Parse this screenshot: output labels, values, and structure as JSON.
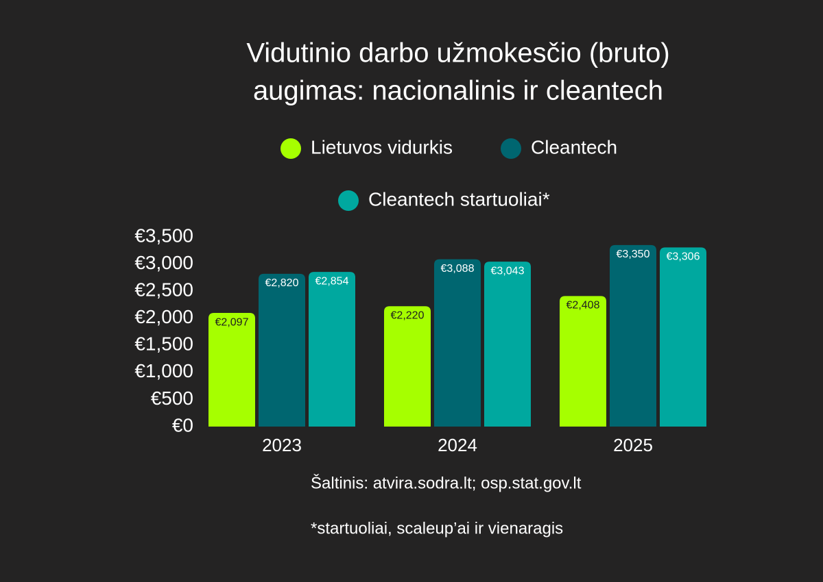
{
  "chart_data": {
    "type": "bar",
    "title": [
      "Vidutinio darbo užmokesčio (bruto)",
      "augimas: nacionalinis ir cleantech"
    ],
    "categories": [
      "2023",
      "2024",
      "2025"
    ],
    "series": [
      {
        "name": "Lietuvos vidurkis",
        "color": "#a6ff00",
        "label_color": "#1f1f1f",
        "values": [
          2097,
          2220,
          2408
        ],
        "value_labels": [
          "€2,097",
          "€2,220",
          "€2,408"
        ]
      },
      {
        "name": "Cleantech",
        "color": "#006670",
        "label_color": "#ffffff",
        "values": [
          2820,
          3088,
          3350
        ],
        "value_labels": [
          "€2,820",
          "€3,088",
          "€3,350"
        ]
      },
      {
        "name": "Cleantech startuoliai*",
        "color": "#00a89f",
        "label_color": "#ffffff",
        "values": [
          2854,
          3043,
          3306
        ],
        "value_labels": [
          "€2,854",
          "€3,043",
          "€3,306"
        ]
      }
    ],
    "ylim": [
      0,
      3500
    ],
    "yticks": [
      {
        "value": 0,
        "label": "€0"
      },
      {
        "value": 500,
        "label": "€500"
      },
      {
        "value": 1000,
        "label": "€1,000"
      },
      {
        "value": 1500,
        "label": "€1,500"
      },
      {
        "value": 2000,
        "label": "€2,000"
      },
      {
        "value": 2500,
        "label": "€2,500"
      },
      {
        "value": 3000,
        "label": "€3,000"
      },
      {
        "value": 3500,
        "label": "€3,500"
      }
    ],
    "grid": false,
    "notes": [
      "Šaltinis: atvira.sodra.lt; osp.stat.gov.lt",
      "*startuoliai, scaleup’ai ir vienaragis"
    ]
  }
}
